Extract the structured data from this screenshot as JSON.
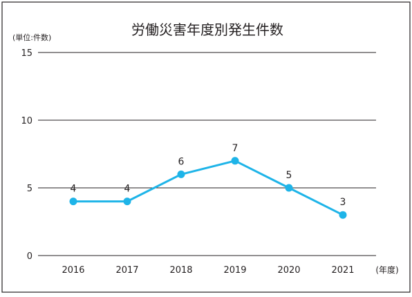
{
  "chart_data": {
    "type": "line",
    "title": "労働災害年度別発生件数",
    "unit_label": "(単位:件数)",
    "x_unit_label": "(年度)",
    "categories": [
      "2016",
      "2017",
      "2018",
      "2019",
      "2020",
      "2021"
    ],
    "series": [
      {
        "values": [
          4,
          4,
          6,
          7,
          5,
          3
        ]
      }
    ],
    "data_labels": [
      "4",
      "4",
      "6",
      "7",
      "5",
      "3"
    ],
    "y_ticks": [
      "0",
      "5",
      "10",
      "15"
    ],
    "ylim": [
      0,
      15
    ],
    "grid": true,
    "line_color": "#1eb4e8",
    "grid_color": "#231f20"
  }
}
